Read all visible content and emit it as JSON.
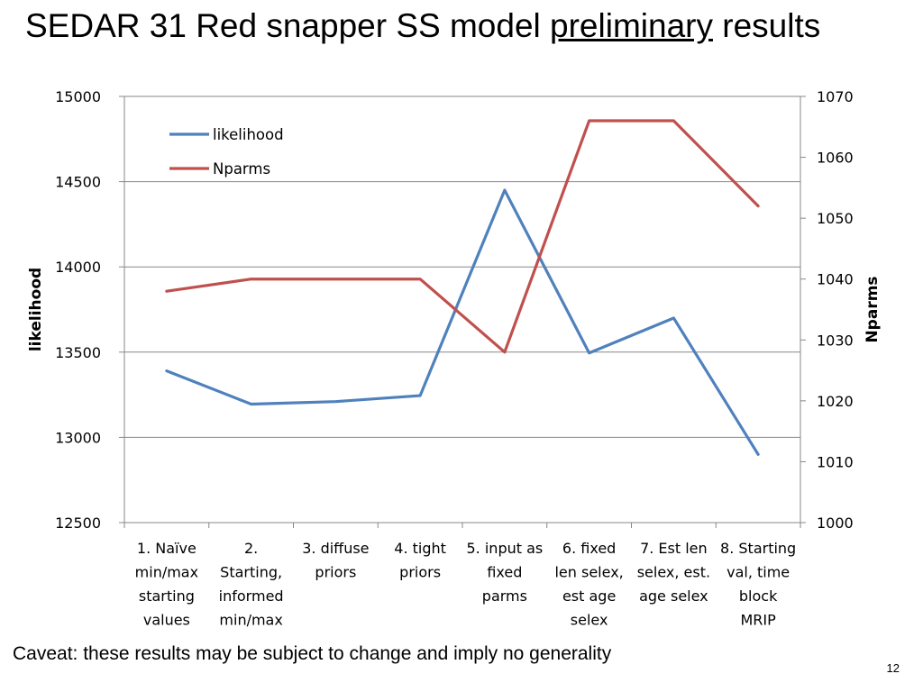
{
  "slide": {
    "title_before": "SEDAR 31 Red snapper SS model ",
    "title_underlined": "preliminary",
    "title_after": " results",
    "caveat": "Caveat: these results may be subject to change and imply no generality",
    "page_number": "12"
  },
  "chart_data": {
    "type": "line",
    "title": "",
    "categories": [
      [
        "1. Naïve",
        "min/max",
        "starting",
        "values"
      ],
      [
        "2.",
        "Starting,",
        "informed",
        "min/max"
      ],
      [
        "3. diffuse",
        "priors"
      ],
      [
        "4.  tight",
        "priors"
      ],
      [
        "5. input as",
        "fixed",
        "parms"
      ],
      [
        "6. fixed",
        "len selex,",
        "est age",
        "selex"
      ],
      [
        "7. Est len",
        "selex, est.",
        "age selex"
      ],
      [
        "8. Starting",
        "val, time",
        "block",
        "MRIP"
      ]
    ],
    "series": [
      {
        "name": "likelihood",
        "axis": "left",
        "color": "#4f81bd",
        "values": [
          13390,
          13195,
          13210,
          13245,
          14450,
          13495,
          13700,
          12900
        ]
      },
      {
        "name": "Nparms",
        "axis": "right",
        "color": "#c0504d",
        "values": [
          1038,
          1040,
          1040,
          1040,
          1028,
          1066,
          1066,
          1052
        ]
      }
    ],
    "ylabel": "likelihood",
    "y2label": "Nparms",
    "ylim": [
      12500,
      15000
    ],
    "y2lim": [
      1000,
      1070
    ],
    "yticks": [
      "12500",
      "13000",
      "13500",
      "14000",
      "14500",
      "15000"
    ],
    "y2ticks": [
      "1000",
      "1010",
      "1020",
      "1030",
      "1040",
      "1050",
      "1060",
      "1070"
    ],
    "grid": true,
    "legend": "top-left"
  }
}
